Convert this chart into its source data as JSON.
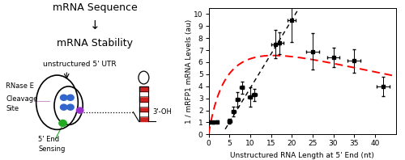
{
  "xlabel": "Unstructured RNA Length at 5' End (nt)",
  "ylabel": "1 / mRFP1 mRNA Levels (au)",
  "xlim": [
    0,
    45
  ],
  "ylim": [
    0,
    10.5
  ],
  "xticks": [
    0,
    5,
    10,
    15,
    20,
    25,
    30,
    35,
    40
  ],
  "yticks": [
    0,
    1,
    2,
    3,
    4,
    5,
    6,
    7,
    8,
    9,
    10
  ],
  "data_x": [
    0,
    1,
    2,
    5,
    6,
    7,
    8,
    10,
    11,
    16,
    17,
    20,
    25,
    30,
    35,
    42
  ],
  "data_y": [
    1.0,
    1.0,
    1.05,
    1.1,
    1.9,
    2.9,
    3.9,
    3.1,
    3.3,
    7.5,
    7.6,
    9.5,
    6.9,
    6.4,
    6.1,
    4.0
  ],
  "data_xerr": [
    0.0,
    0.0,
    0.0,
    0.5,
    0.5,
    0.5,
    0.5,
    0.5,
    0.5,
    1.0,
    1.0,
    1.0,
    1.5,
    1.5,
    1.5,
    1.5
  ],
  "data_yerr": [
    0.1,
    0.1,
    0.1,
    0.2,
    0.4,
    0.6,
    0.5,
    0.8,
    0.5,
    1.2,
    0.9,
    1.8,
    1.5,
    0.8,
    1.0,
    0.8
  ],
  "background_color": "#ffffff"
}
